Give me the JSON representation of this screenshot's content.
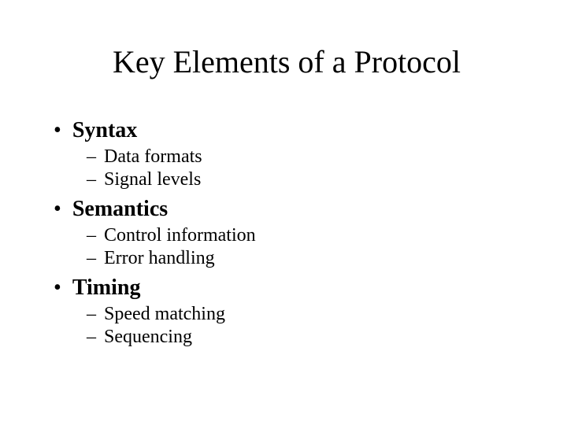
{
  "slide": {
    "title": "Key Elements of a Protocol",
    "background_color": "#ffffff",
    "text_color": "#000000",
    "title_fontsize": 40,
    "bullet1_fontsize": 28,
    "bullet2_fontsize": 24,
    "font_family": "Times New Roman",
    "sections": [
      {
        "heading": "Syntax",
        "items": [
          "Data formats",
          "Signal levels"
        ]
      },
      {
        "heading": "Semantics",
        "items": [
          "Control information",
          "Error handling"
        ]
      },
      {
        "heading": "Timing",
        "items": [
          "Speed matching",
          "Sequencing"
        ]
      }
    ]
  }
}
